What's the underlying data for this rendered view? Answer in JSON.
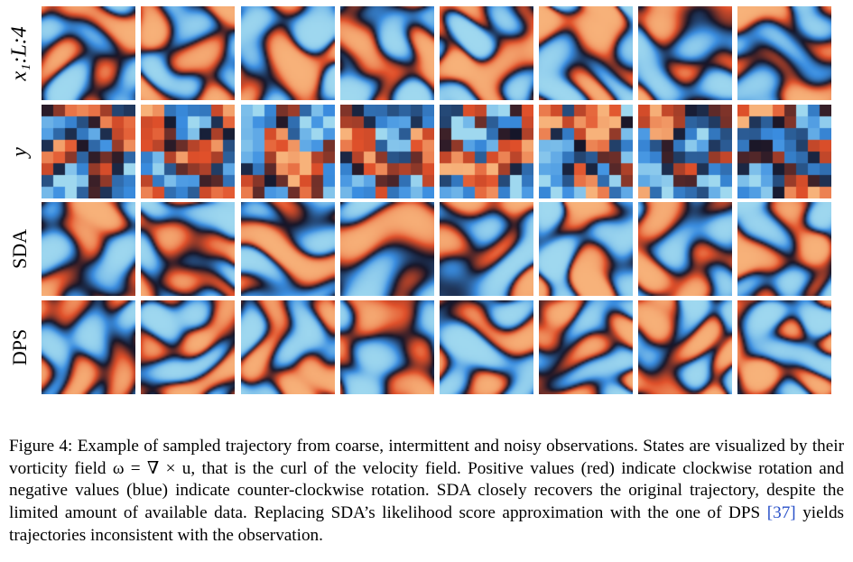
{
  "figure": {
    "rows": [
      {
        "key": "x",
        "label": "x₁:L:4",
        "style": "smooth"
      },
      {
        "key": "y",
        "label": "y",
        "style": "coarse"
      },
      {
        "key": "sda",
        "label": "SDA",
        "style": "smooth"
      },
      {
        "key": "dps",
        "label": "DPS",
        "style": "smooth"
      }
    ],
    "columns": 8,
    "colormap": {
      "negative": "#3a8de0",
      "zero": "#151528",
      "positive": "#e0502a",
      "peak_pos": "#f7b27a",
      "peak_neg": "#9fd8ef"
    }
  },
  "caption": {
    "label": "Figure 4:",
    "text_before_ref": "Example of sampled trajectory from coarse, intermittent and noisy observations. States are visualized by their vorticity field ω = ∇ × u, that is the curl of the velocity field. Positive values (red) indicate clockwise rotation and negative values (blue) indicate counter-clockwise rotation. SDA closely recovers the original trajectory, despite the limited amount of available data. Replacing SDA’s likelihood score approximation with the one of DPS",
    "ref": "[37]",
    "text_after_ref": "yields trajectories inconsistent with the observation."
  }
}
